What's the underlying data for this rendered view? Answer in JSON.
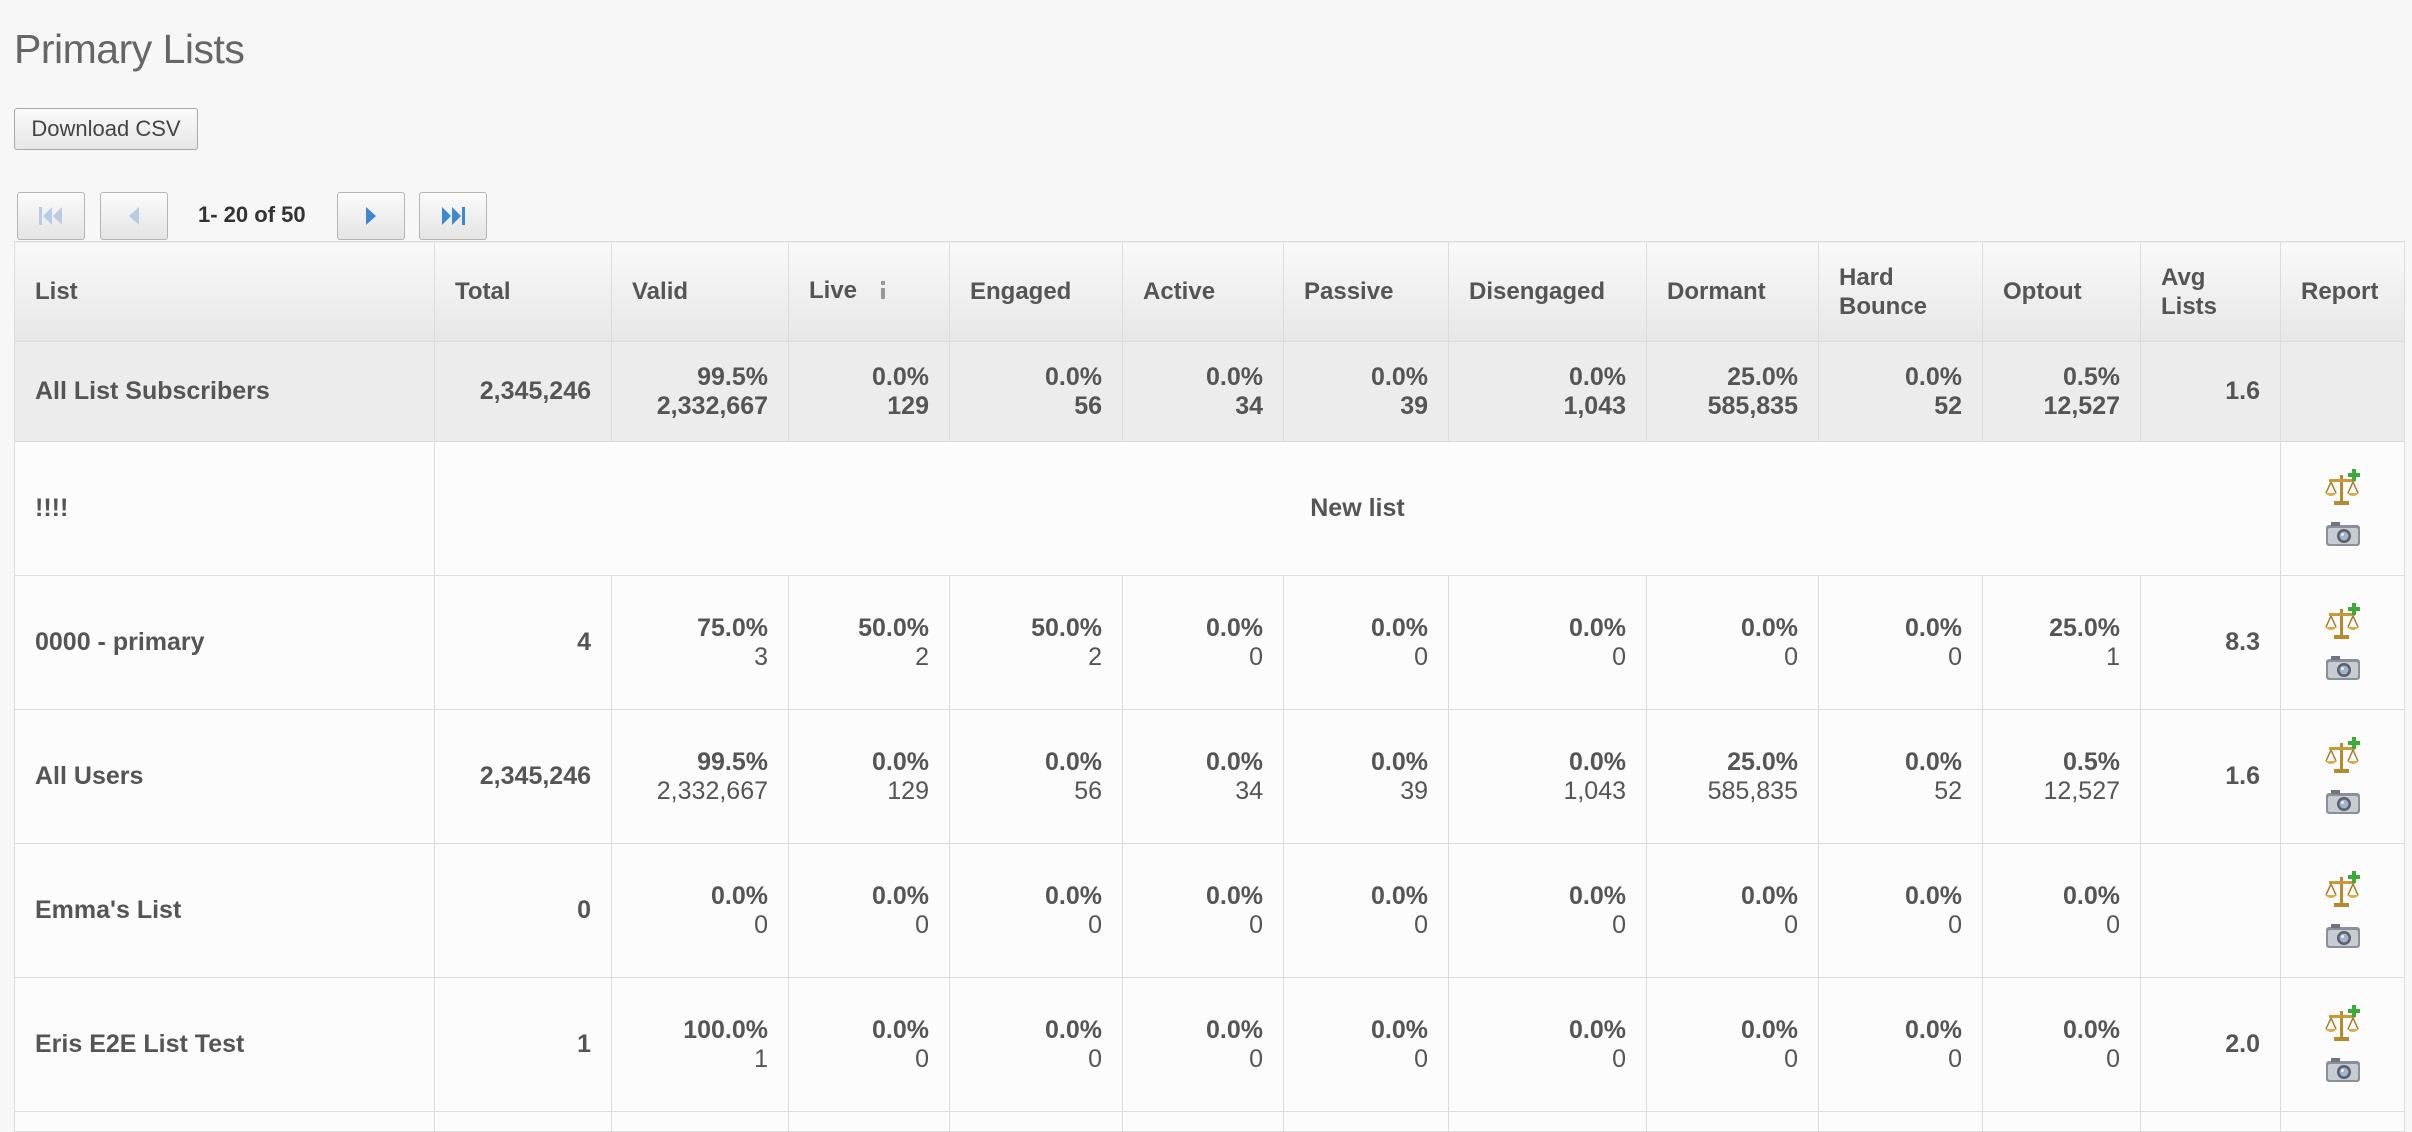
{
  "page": {
    "title": "Primary Lists"
  },
  "toolbar": {
    "download_csv_label": "Download CSV"
  },
  "pagination": {
    "info": "1- 20 of 50",
    "buttons": [
      "first-page-icon",
      "prev-page-icon",
      "next-page-icon",
      "last-page-icon"
    ]
  },
  "table": {
    "columns": [
      "List",
      "Total",
      "Valid",
      "Live",
      "Engaged",
      "Active",
      "Passive",
      "Disengaged",
      "Dormant",
      "Hard Bounce",
      "Optout",
      "Avg Lists",
      "Report"
    ],
    "summary": {
      "name": "All List Subscribers",
      "total": "2,345,246",
      "metrics": [
        {
          "pct": "99.5%",
          "count": "2,332,667"
        },
        {
          "pct": "0.0%",
          "count": "129"
        },
        {
          "pct": "0.0%",
          "count": "56"
        },
        {
          "pct": "0.0%",
          "count": "34"
        },
        {
          "pct": "0.0%",
          "count": "39"
        },
        {
          "pct": "0.0%",
          "count": "1,043"
        },
        {
          "pct": "25.0%",
          "count": "585,835"
        },
        {
          "pct": "0.0%",
          "count": "52"
        },
        {
          "pct": "0.5%",
          "count": "12,527"
        }
      ],
      "avg": "1.6"
    },
    "rows": [
      {
        "name": "!!!!",
        "new_list_label": "New list"
      },
      {
        "name": "0000 - primary",
        "total": "4",
        "metrics": [
          {
            "pct": "75.0%",
            "count": "3"
          },
          {
            "pct": "50.0%",
            "count": "2"
          },
          {
            "pct": "50.0%",
            "count": "2"
          },
          {
            "pct": "0.0%",
            "count": "0"
          },
          {
            "pct": "0.0%",
            "count": "0"
          },
          {
            "pct": "0.0%",
            "count": "0"
          },
          {
            "pct": "0.0%",
            "count": "0"
          },
          {
            "pct": "0.0%",
            "count": "0"
          },
          {
            "pct": "25.0%",
            "count": "1"
          }
        ],
        "avg": "8.3"
      },
      {
        "name": "All Users",
        "total": "2,345,246",
        "metrics": [
          {
            "pct": "99.5%",
            "count": "2,332,667"
          },
          {
            "pct": "0.0%",
            "count": "129"
          },
          {
            "pct": "0.0%",
            "count": "56"
          },
          {
            "pct": "0.0%",
            "count": "34"
          },
          {
            "pct": "0.0%",
            "count": "39"
          },
          {
            "pct": "0.0%",
            "count": "1,043"
          },
          {
            "pct": "25.0%",
            "count": "585,835"
          },
          {
            "pct": "0.0%",
            "count": "52"
          },
          {
            "pct": "0.5%",
            "count": "12,527"
          }
        ],
        "avg": "1.6"
      },
      {
        "name": "Emma's List",
        "total": "0",
        "metrics": [
          {
            "pct": "0.0%",
            "count": "0"
          },
          {
            "pct": "0.0%",
            "count": "0"
          },
          {
            "pct": "0.0%",
            "count": "0"
          },
          {
            "pct": "0.0%",
            "count": "0"
          },
          {
            "pct": "0.0%",
            "count": "0"
          },
          {
            "pct": "0.0%",
            "count": "0"
          },
          {
            "pct": "0.0%",
            "count": "0"
          },
          {
            "pct": "0.0%",
            "count": "0"
          },
          {
            "pct": "0.0%",
            "count": "0"
          }
        ],
        "avg": ""
      },
      {
        "name": "Eris E2E List Test",
        "total": "1",
        "metrics": [
          {
            "pct": "100.0%",
            "count": "1"
          },
          {
            "pct": "0.0%",
            "count": "0"
          },
          {
            "pct": "0.0%",
            "count": "0"
          },
          {
            "pct": "0.0%",
            "count": "0"
          },
          {
            "pct": "0.0%",
            "count": "0"
          },
          {
            "pct": "0.0%",
            "count": "0"
          },
          {
            "pct": "0.0%",
            "count": "0"
          },
          {
            "pct": "0.0%",
            "count": "0"
          },
          {
            "pct": "0.0%",
            "count": "0"
          }
        ],
        "avg": "2.0"
      },
      {
        "name": "",
        "partial": true
      }
    ],
    "report_icons": [
      "compare-scales-add-icon",
      "snapshot-camera-icon"
    ],
    "live_info_icon": "info-icon"
  }
}
